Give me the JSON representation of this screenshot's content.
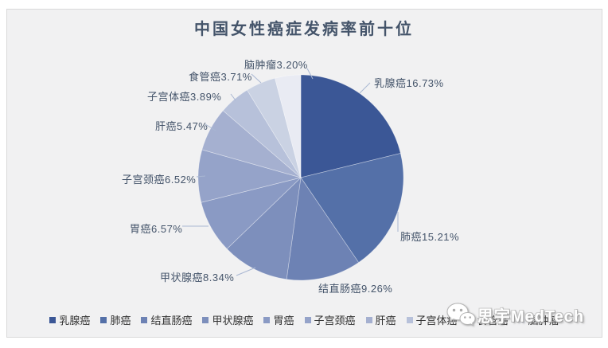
{
  "title": "中国女性癌症发病率前十位",
  "chart_data": {
    "type": "pie",
    "title": "中国女性癌症发病率前十位",
    "categories": [
      "乳腺癌",
      "肺癌",
      "结直肠癌",
      "甲状腺癌",
      "胃癌",
      "子宫颈癌",
      "肝癌",
      "子宫体癌",
      "食管癌",
      "脑肿瘤"
    ],
    "values": [
      16.73,
      15.21,
      9.26,
      8.34,
      6.57,
      6.52,
      5.47,
      3.89,
      3.71,
      3.2
    ],
    "unit": "%",
    "display_labels": [
      "乳腺癌16.73%",
      "肺癌15.21%",
      "结直肠癌9.26%",
      "甲状腺癌8.34%",
      "胃癌6.57%",
      "子宫颈癌6.52%",
      "肝癌5.47%",
      "子宫体癌3.89%",
      "食管癌3.71%",
      "脑肿瘤3.20%"
    ],
    "colors": [
      "#3B5796",
      "#5470A8",
      "#6D82B4",
      "#7D8FBC",
      "#8A9AC4",
      "#95A3C9",
      "#A5B0D0",
      "#B7C1DA",
      "#CAD2E3",
      "#E9EBF3"
    ],
    "start_angle_deg": 0,
    "direction": "clockwise",
    "legend_position": "bottom",
    "grid": false,
    "title_color": "#44546A",
    "label_color": "#44546A",
    "leader_line_color": "#A9B7D2",
    "panel_background": "#F1F1F2"
  },
  "watermark": {
    "icon": "wechat-icon",
    "text": "思宇MedTech"
  }
}
